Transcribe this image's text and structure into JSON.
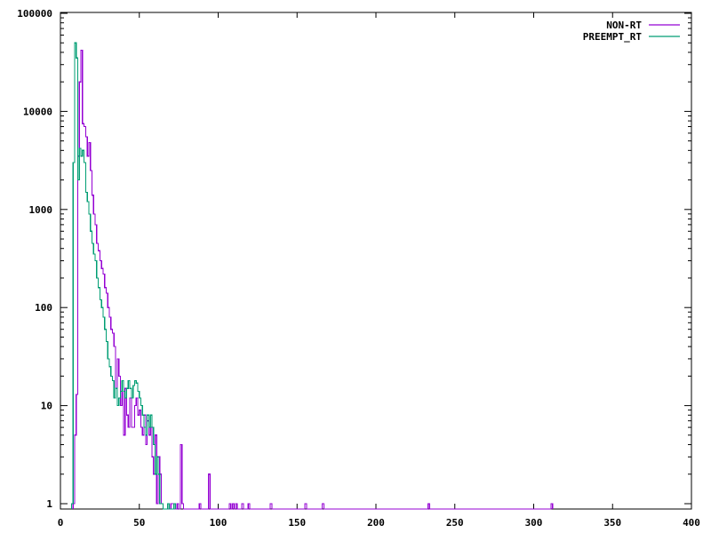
{
  "chart_data": {
    "type": "line",
    "title": "",
    "xlabel": "",
    "ylabel": "",
    "xlim": [
      0,
      400
    ],
    "ylim": [
      1,
      100000
    ],
    "yscale": "log",
    "grid": false,
    "legend_position": "top-right",
    "x_ticks": [
      0,
      50,
      100,
      150,
      200,
      250,
      300,
      350,
      400
    ],
    "y_ticks": [
      1,
      10,
      100,
      1000,
      10000,
      100000
    ],
    "series": [
      {
        "name": "NON-RT",
        "color": "#9400d3",
        "points": [
          [
            8,
            1
          ],
          [
            9,
            5
          ],
          [
            10,
            13
          ],
          [
            11,
            3500
          ],
          [
            12,
            20000
          ],
          [
            13,
            42000
          ],
          [
            14,
            7500
          ],
          [
            15,
            7000
          ],
          [
            16,
            5500
          ],
          [
            17,
            3500
          ],
          [
            18,
            4800
          ],
          [
            19,
            2500
          ],
          [
            20,
            1400
          ],
          [
            21,
            900
          ],
          [
            22,
            700
          ],
          [
            23,
            450
          ],
          [
            24,
            380
          ],
          [
            25,
            300
          ],
          [
            26,
            250
          ],
          [
            27,
            220
          ],
          [
            28,
            160
          ],
          [
            29,
            140
          ],
          [
            30,
            100
          ],
          [
            31,
            80
          ],
          [
            32,
            60
          ],
          [
            33,
            55
          ],
          [
            34,
            40
          ],
          [
            35,
            15
          ],
          [
            36,
            30
          ],
          [
            37,
            20
          ],
          [
            38,
            10
          ],
          [
            39,
            18
          ],
          [
            40,
            5
          ],
          [
            41,
            15
          ],
          [
            42,
            8
          ],
          [
            43,
            6
          ],
          [
            44,
            12
          ],
          [
            45,
            6
          ],
          [
            46,
            6
          ],
          [
            47,
            10
          ],
          [
            48,
            12
          ],
          [
            49,
            8
          ],
          [
            50,
            9
          ],
          [
            51,
            6
          ],
          [
            52,
            5
          ],
          [
            53,
            8
          ],
          [
            54,
            4
          ],
          [
            55,
            7
          ],
          [
            56,
            5
          ],
          [
            57,
            6
          ],
          [
            58,
            3
          ],
          [
            59,
            2
          ],
          [
            60,
            5
          ],
          [
            61,
            1
          ],
          [
            62,
            3
          ],
          [
            63,
            2
          ],
          [
            64,
            1
          ],
          [
            65,
            0
          ],
          [
            70,
            1
          ],
          [
            72,
            0
          ],
          [
            74,
            1
          ],
          [
            75,
            0
          ],
          [
            76,
            4
          ],
          [
            77,
            1
          ],
          [
            78,
            0
          ],
          [
            88,
            1
          ],
          [
            89,
            0
          ],
          [
            94,
            2
          ],
          [
            95,
            0
          ],
          [
            107,
            1
          ],
          [
            108,
            0
          ],
          [
            109,
            1
          ],
          [
            110,
            0
          ],
          [
            111,
            1
          ],
          [
            112,
            0
          ],
          [
            115,
            1
          ],
          [
            116,
            0
          ],
          [
            119,
            1
          ],
          [
            120,
            0
          ],
          [
            133,
            1
          ],
          [
            134,
            0
          ],
          [
            155,
            1
          ],
          [
            156,
            0
          ],
          [
            166,
            1
          ],
          [
            167,
            0
          ],
          [
            233,
            1
          ],
          [
            234,
            0
          ],
          [
            311,
            1
          ],
          [
            312,
            0
          ]
        ]
      },
      {
        "name": "PREEMPT_RT",
        "color": "#009e73",
        "points": [
          [
            7,
            1
          ],
          [
            8,
            3000
          ],
          [
            9,
            50000
          ],
          [
            10,
            35000
          ],
          [
            11,
            2000
          ],
          [
            12,
            4200
          ],
          [
            13,
            3500
          ],
          [
            14,
            4000
          ],
          [
            15,
            3000
          ],
          [
            16,
            1500
          ],
          [
            17,
            1200
          ],
          [
            18,
            900
          ],
          [
            19,
            600
          ],
          [
            20,
            450
          ],
          [
            21,
            350
          ],
          [
            22,
            300
          ],
          [
            23,
            200
          ],
          [
            24,
            160
          ],
          [
            25,
            120
          ],
          [
            26,
            100
          ],
          [
            27,
            80
          ],
          [
            28,
            60
          ],
          [
            29,
            45
          ],
          [
            30,
            30
          ],
          [
            31,
            25
          ],
          [
            32,
            20
          ],
          [
            33,
            18
          ],
          [
            34,
            12
          ],
          [
            35,
            15
          ],
          [
            36,
            10
          ],
          [
            37,
            12
          ],
          [
            38,
            14
          ],
          [
            39,
            18
          ],
          [
            40,
            14
          ],
          [
            41,
            12
          ],
          [
            42,
            15
          ],
          [
            43,
            18
          ],
          [
            44,
            15
          ],
          [
            45,
            12
          ],
          [
            46,
            16
          ],
          [
            47,
            18
          ],
          [
            48,
            17
          ],
          [
            49,
            14
          ],
          [
            50,
            12
          ],
          [
            51,
            10
          ],
          [
            52,
            8
          ],
          [
            53,
            6
          ],
          [
            54,
            5
          ],
          [
            55,
            8
          ],
          [
            56,
            6
          ],
          [
            57,
            8
          ],
          [
            58,
            6
          ],
          [
            59,
            4
          ],
          [
            60,
            2
          ],
          [
            61,
            3
          ],
          [
            62,
            2
          ],
          [
            63,
            1
          ],
          [
            64,
            1
          ],
          [
            65,
            0
          ],
          [
            68,
            1
          ],
          [
            69,
            0
          ],
          [
            72,
            1
          ],
          [
            73,
            0
          ]
        ]
      }
    ]
  }
}
